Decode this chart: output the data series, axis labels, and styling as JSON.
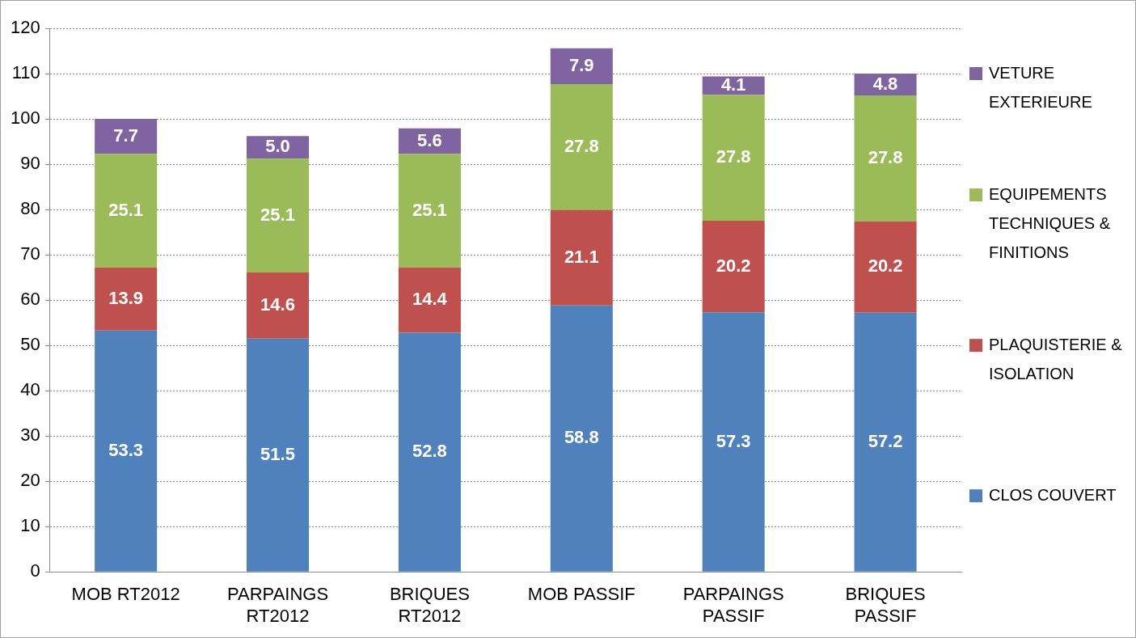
{
  "chart_data": {
    "type": "bar",
    "stacked": true,
    "categories": [
      "MOB RT2012",
      "PARPAINGS RT2012",
      "BRIQUES RT2012",
      "MOB PASSIF",
      "PARPAINGS PASSIF",
      "BRIQUES PASSIF"
    ],
    "series": [
      {
        "name": "CLOS COUVERT",
        "color": "#4f81bd",
        "values": [
          53.3,
          51.5,
          52.8,
          58.8,
          57.3,
          57.2
        ],
        "value_labels": [
          "53.3",
          "51.5",
          "52.8",
          "58.8",
          "57.3",
          "57.2"
        ]
      },
      {
        "name": "PLAQUISTERIE & ISOLATION",
        "color": "#c0504d",
        "values": [
          13.9,
          14.6,
          14.4,
          21.1,
          20.2,
          20.2
        ],
        "value_labels": [
          "13.9",
          "14.6",
          "14.4",
          "21.1",
          "20.2",
          "20.2"
        ]
      },
      {
        "name": "EQUIPEMENTS TECHNIQUES & FINITIONS",
        "color": "#9bbb59",
        "values": [
          25.1,
          25.1,
          25.1,
          27.8,
          27.8,
          27.8
        ],
        "value_labels": [
          "25.1",
          "25.1",
          "25.1",
          "27.8",
          "27.8",
          "27.8"
        ]
      },
      {
        "name": "VETURE EXTERIEURE",
        "color": "#8064a2",
        "values": [
          7.7,
          5.0,
          5.6,
          7.9,
          4.1,
          4.8
        ],
        "value_labels": [
          "7.7",
          "5.0",
          "5.6",
          "7.9",
          "4.1",
          "4.8"
        ]
      }
    ],
    "ylim": [
      0,
      120
    ],
    "yticks": [
      0,
      10,
      20,
      30,
      40,
      50,
      60,
      70,
      80,
      90,
      100,
      110,
      120
    ],
    "grid": "y",
    "legend": "right"
  }
}
